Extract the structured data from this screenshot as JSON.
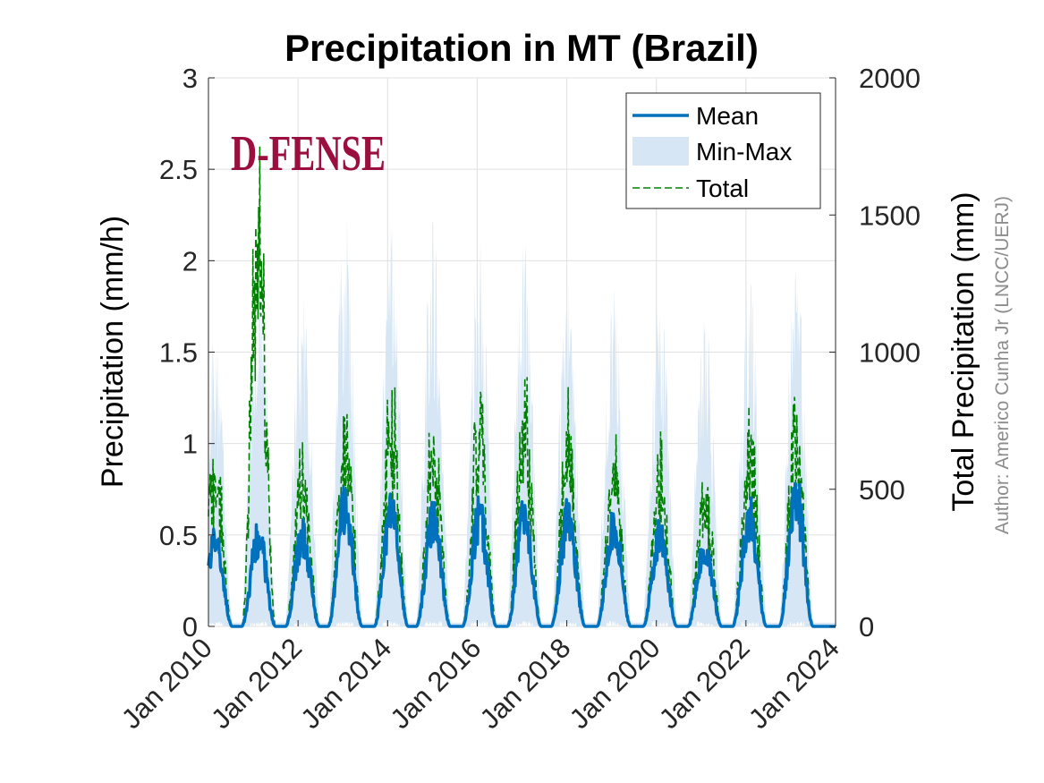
{
  "chart_data": {
    "type": "line",
    "title": "Precipitation in MT (Brazil)",
    "logo_text": "D-FENSE",
    "author": "Author: Americo Cunha Jr (LNCC/UERJ)",
    "ylabel": "Precipitation (mm/h)",
    "ylabel_right": "Total Precipitation (mm)",
    "ylim": [
      0,
      3
    ],
    "ylim_right": [
      0,
      2000
    ],
    "y_ticks": [
      {
        "value": 0,
        "label": "0"
      },
      {
        "value": 0.5,
        "label": "0.5"
      },
      {
        "value": 1,
        "label": "1"
      },
      {
        "value": 1.5,
        "label": "1.5"
      },
      {
        "value": 2,
        "label": "2"
      },
      {
        "value": 2.5,
        "label": "2.5"
      },
      {
        "value": 3,
        "label": "3"
      }
    ],
    "y_ticks_right": [
      {
        "value": 0,
        "label": "0"
      },
      {
        "value": 500,
        "label": "500"
      },
      {
        "value": 1000,
        "label": "1000"
      },
      {
        "value": 1500,
        "label": "1500"
      },
      {
        "value": 2000,
        "label": "2000"
      }
    ],
    "xlim": [
      2010,
      2024
    ],
    "x_ticks": [
      {
        "value": 2010,
        "label": "Jan 2010"
      },
      {
        "value": 2012,
        "label": "Jan 2012"
      },
      {
        "value": 2014,
        "label": "Jan 2014"
      },
      {
        "value": 2016,
        "label": "Jan 2016"
      },
      {
        "value": 2018,
        "label": "Jan 2018"
      },
      {
        "value": 2020,
        "label": "Jan 2020"
      },
      {
        "value": 2022,
        "label": "Jan 2022"
      },
      {
        "value": 2024,
        "label": "Jan 2024"
      }
    ],
    "grid": true,
    "legend": {
      "position": "top-right",
      "entries": [
        {
          "name": "Mean",
          "style": "solid",
          "color": "#0072bd"
        },
        {
          "name": "Min-Max",
          "style": "fill",
          "color": "#d6e6f4"
        },
        {
          "name": "Total",
          "style": "dashed",
          "color": "#008000"
        }
      ]
    },
    "seasons": [
      {
        "center": 2010.15,
        "mean_peak": 0.48,
        "max_peak": 1.55,
        "total_peak": 620
      },
      {
        "center": 2011.12,
        "mean_peak": 0.5,
        "max_peak": 2.05,
        "total_peak": 1530
      },
      {
        "center": 2012.1,
        "mean_peak": 0.5,
        "max_peak": 1.8,
        "total_peak": 620
      },
      {
        "center": 2013.05,
        "mean_peak": 0.68,
        "max_peak": 2.2,
        "total_peak": 760
      },
      {
        "center": 2014.08,
        "mean_peak": 0.65,
        "max_peak": 2.1,
        "total_peak": 820
      },
      {
        "center": 2015.02,
        "mean_peak": 0.6,
        "max_peak": 2.15,
        "total_peak": 700
      },
      {
        "center": 2016.05,
        "mean_peak": 0.6,
        "max_peak": 2.05,
        "total_peak": 820
      },
      {
        "center": 2017.05,
        "mean_peak": 0.6,
        "max_peak": 2.0,
        "total_peak": 780
      },
      {
        "center": 2018.03,
        "mean_peak": 0.6,
        "max_peak": 1.9,
        "total_peak": 700
      },
      {
        "center": 2019.05,
        "mean_peak": 0.55,
        "max_peak": 1.8,
        "total_peak": 620
      },
      {
        "center": 2020.08,
        "mean_peak": 0.5,
        "max_peak": 1.75,
        "total_peak": 560
      },
      {
        "center": 2021.08,
        "mean_peak": 0.45,
        "max_peak": 1.7,
        "total_peak": 520
      },
      {
        "center": 2022.08,
        "mean_peak": 0.6,
        "max_peak": 1.85,
        "total_peak": 680
      },
      {
        "center": 2023.12,
        "mean_peak": 0.72,
        "max_peak": 1.95,
        "total_peak": 790
      }
    ],
    "colors": {
      "mean": "#0072bd",
      "minmax": "#d6e6f4",
      "total": "#008000",
      "grid": "#e0e0e0",
      "axis": "#262626"
    }
  }
}
